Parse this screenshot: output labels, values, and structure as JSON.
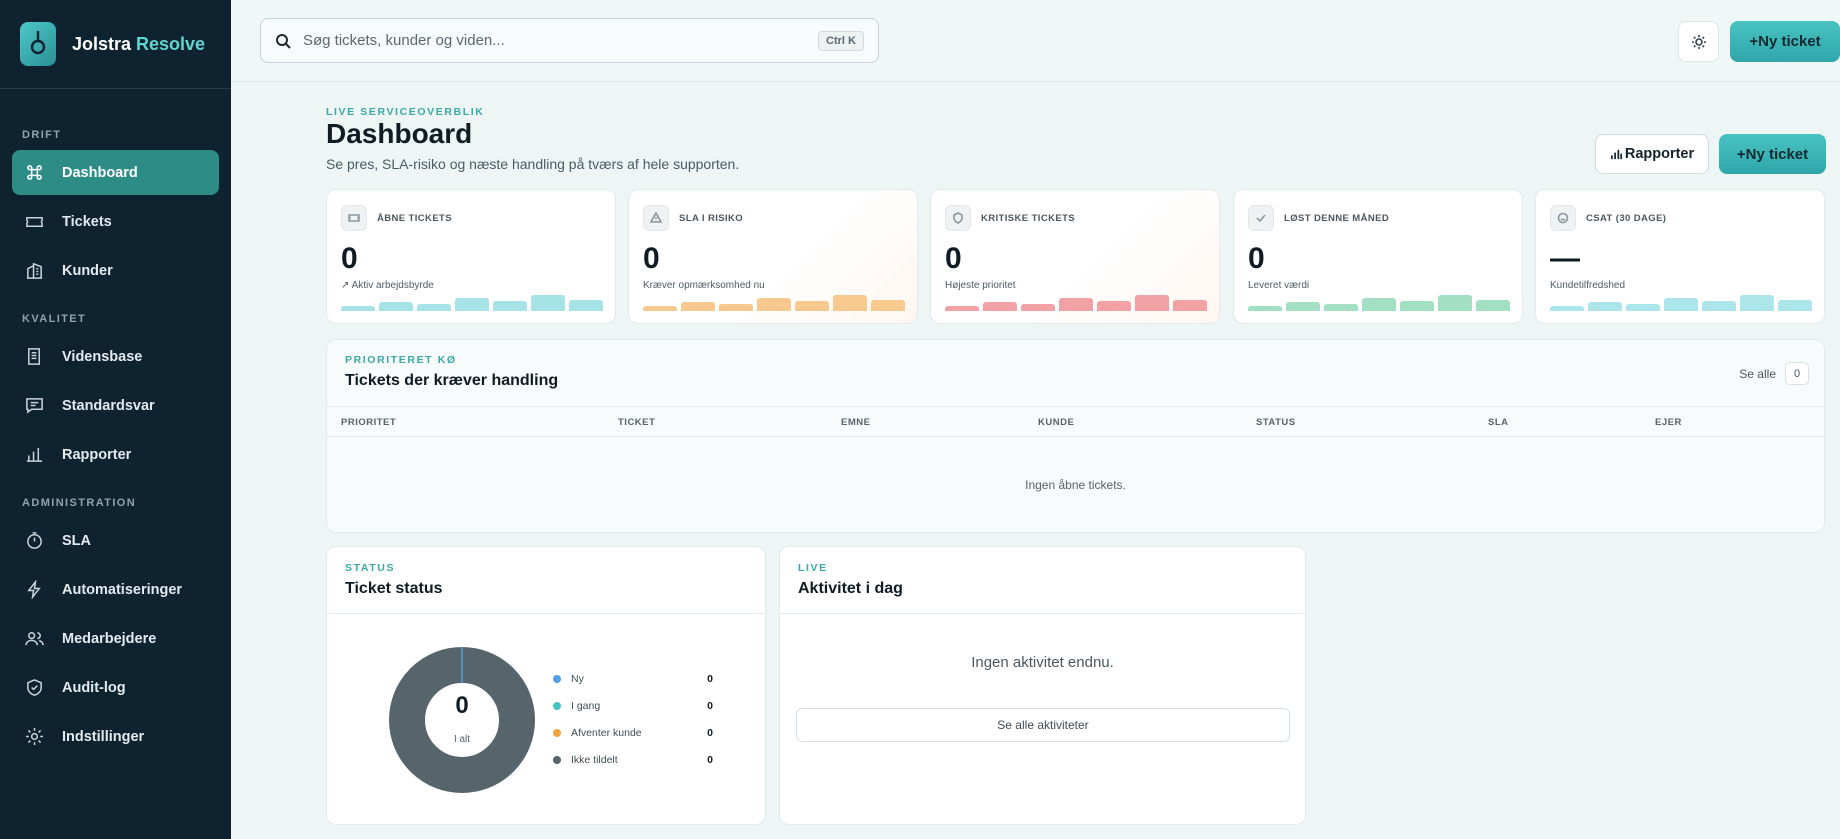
{
  "brand": {
    "name": "Jolstra",
    "accent": "Resolve"
  },
  "sidebar": {
    "sections": [
      {
        "label": "DRIFT"
      },
      {
        "label": "KVALITET"
      },
      {
        "label": "ADMINISTRATION"
      }
    ],
    "items": [
      {
        "label": "Dashboard",
        "icon": "command-icon",
        "active": true
      },
      {
        "label": "Tickets",
        "icon": "ticket-icon"
      },
      {
        "label": "Kunder",
        "icon": "building-icon"
      },
      {
        "label": "Vidensbase",
        "icon": "book-icon"
      },
      {
        "label": "Standardsvar",
        "icon": "message-icon"
      },
      {
        "label": "Rapporter",
        "icon": "bar-chart-icon"
      },
      {
        "label": "SLA",
        "icon": "timer-icon"
      },
      {
        "label": "Automatiseringer",
        "icon": "lightning-icon"
      },
      {
        "label": "Medarbejdere",
        "icon": "users-icon"
      },
      {
        "label": "Audit-log",
        "icon": "shield-icon"
      },
      {
        "label": "Indstillinger",
        "icon": "gear-icon"
      }
    ]
  },
  "topbar": {
    "search_placeholder": "Søg tickets, kunder og viden...",
    "shortcut": "Ctrl K",
    "new_ticket_label": "Ny ticket"
  },
  "header": {
    "eyebrow": "LIVE SERVICEOVERBLIK",
    "title": "Dashboard",
    "subtitle": "Se pres, SLA-risiko og næste handling på tværs af hele supporten.",
    "reports_label": "Rapporter",
    "new_ticket_label": "Ny ticket"
  },
  "kpis": [
    {
      "label": "ÅBNE TICKETS",
      "value": "0",
      "note": "↗ Aktiv arbejdsbyrde",
      "icon": "ticket-icon",
      "color": "#a6e3e6",
      "bars": [
        0.3,
        0.5,
        0.4,
        0.7,
        0.55,
        0.9,
        0.6
      ]
    },
    {
      "label": "SLA I RISIKO",
      "value": "0",
      "note": "Kræver opmærksomhed nu",
      "icon": "warning-icon",
      "color": "#f7c98f",
      "bars": [
        0.3,
        0.5,
        0.4,
        0.7,
        0.55,
        0.9,
        0.6
      ]
    },
    {
      "label": "KRITISKE TICKETS",
      "value": "0",
      "note": "Højeste prioritet",
      "icon": "shield-icon",
      "color": "#f2a1a4",
      "bars": [
        0.3,
        0.5,
        0.4,
        0.7,
        0.55,
        0.9,
        0.6
      ]
    },
    {
      "label": "LØST DENNE MÅNED",
      "value": "0",
      "note": "Leveret værdi",
      "icon": "check-icon",
      "color": "#a3e0c3",
      "bars": [
        0.3,
        0.5,
        0.4,
        0.7,
        0.55,
        0.9,
        0.6
      ]
    },
    {
      "label": "CSAT (30 DAGE)",
      "value": "—",
      "note": "Kundetilfredshed",
      "icon": "smile-icon",
      "color": "#ace6ea",
      "bars": [
        0.3,
        0.5,
        0.4,
        0.7,
        0.55,
        0.9,
        0.6
      ]
    }
  ],
  "queue": {
    "eyebrow": "PRIORITERET KØ",
    "title": "Tickets der kræver handling",
    "see_all": "Se alle",
    "count": "0",
    "columns": [
      "PRIORITET",
      "TICKET",
      "EMNE",
      "KUNDE",
      "STATUS",
      "SLA",
      "EJER"
    ],
    "empty": "Ingen åbne tickets."
  },
  "status": {
    "eyebrow": "STATUS",
    "title": "Ticket status",
    "total": "0",
    "total_caption": "I alt",
    "legend": [
      {
        "label": "Ny",
        "value": "0",
        "color": "#4ea3e6"
      },
      {
        "label": "I gang",
        "value": "0",
        "color": "#45c4c6"
      },
      {
        "label": "Afventer kunde",
        "value": "0",
        "color": "#f0a23c"
      },
      {
        "label": "Ikke tildelt",
        "value": "0",
        "color": "#56646c"
      }
    ]
  },
  "activity": {
    "eyebrow": "LIVE",
    "title": "Aktivitet i dag",
    "empty": "Ingen aktivitet endnu.",
    "see_all": "Se alle aktiviteter"
  },
  "colors": {
    "sidebar_bg": "#0f2230",
    "accent": "#3aa9a6",
    "active_nav": "#2e8c86",
    "donut_ring": "#56646c"
  }
}
